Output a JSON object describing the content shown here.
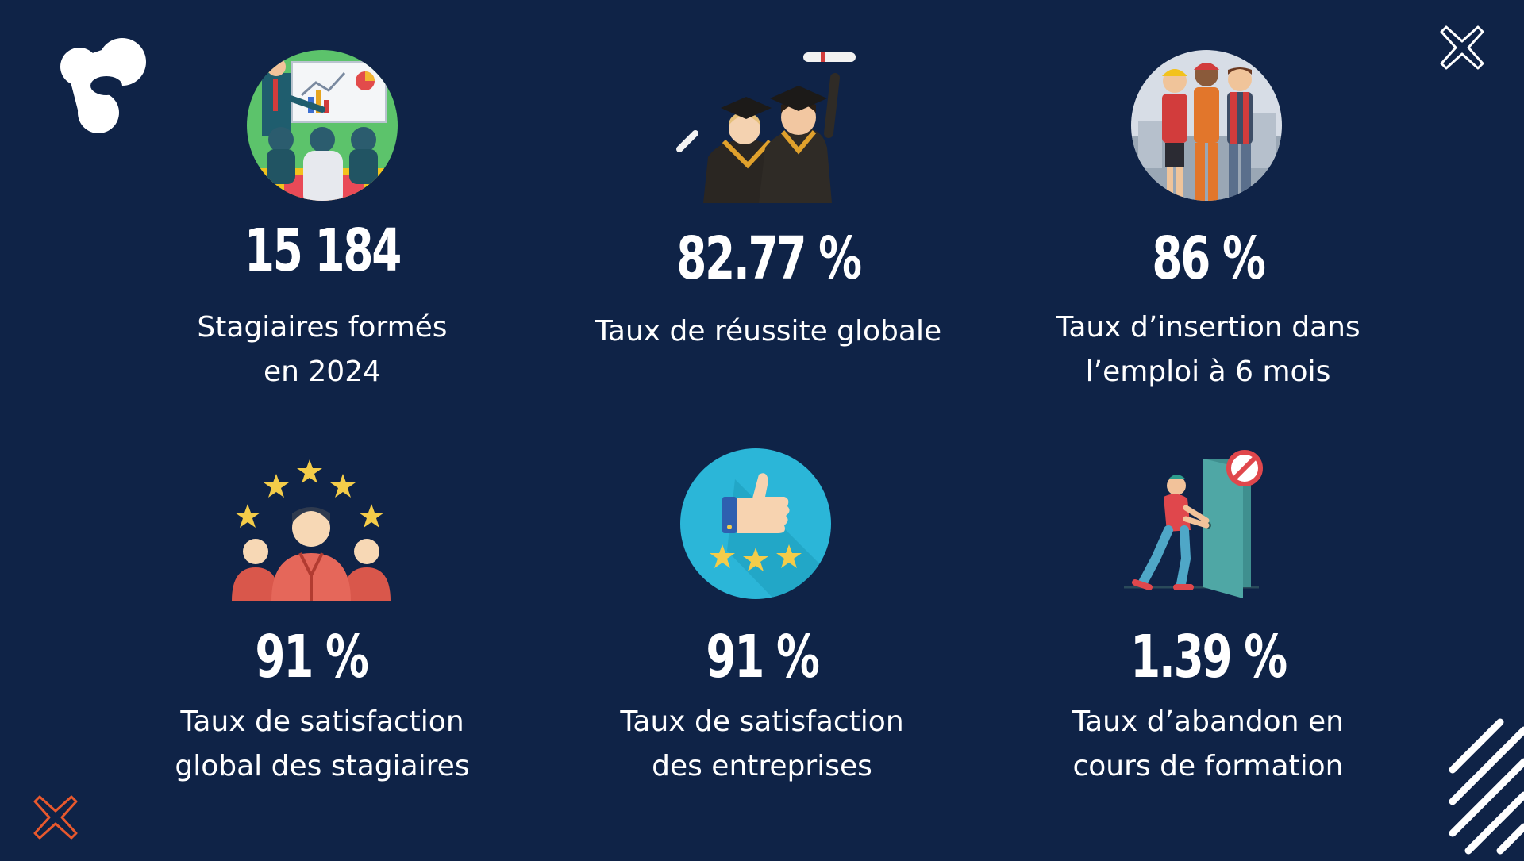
{
  "theme": {
    "background": "#0f2347",
    "accent_orange": "#e8582d",
    "text": "#ffffff"
  },
  "logo": {
    "icon": "brand-logo-icon"
  },
  "decorations": {
    "top_right": "cross-outline-white-icon",
    "bottom_left": "cross-outline-orange-icon",
    "bottom_right": "diagonal-stripes-icon"
  },
  "stats": [
    {
      "value": "15 184",
      "label_lines": [
        "Stagiaires formés",
        "en 2024"
      ],
      "icon": "trainer-presentation-icon"
    },
    {
      "value": "82.77 %",
      "label_lines": [
        "Taux de réussite globale"
      ],
      "icon": "graduates-icon"
    },
    {
      "value": "86 %",
      "label_lines": [
        "Taux d’insertion dans",
        "l’emploi à 6 mois"
      ],
      "icon": "workers-icon"
    },
    {
      "value": "91 %",
      "label_lines": [
        "Taux de satisfaction",
        "global des stagiaires"
      ],
      "icon": "five-stars-trainees-icon"
    },
    {
      "value": "91 %",
      "label_lines": [
        "Taux de satisfaction",
        "des entreprises"
      ],
      "icon": "thumbs-up-stars-icon"
    },
    {
      "value": "1.39 %",
      "label_lines": [
        "Taux d’abandon en",
        "cours de formation"
      ],
      "icon": "leaving-door-icon"
    }
  ]
}
